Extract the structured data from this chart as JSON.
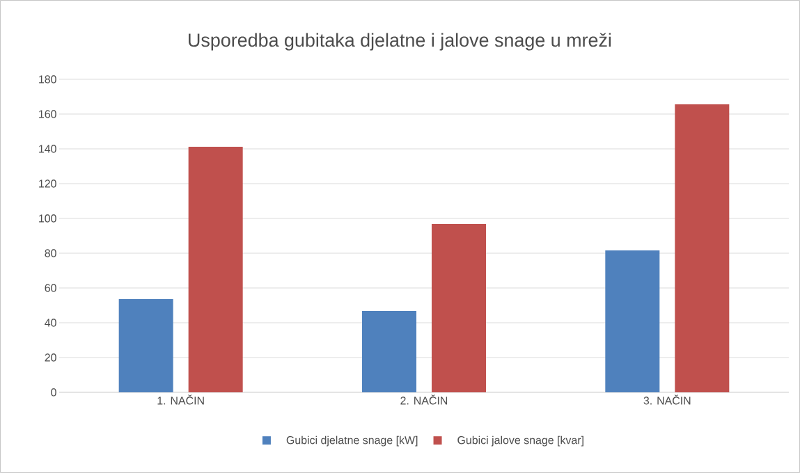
{
  "chart_data": {
    "type": "bar",
    "title": "Usporedba gubitaka djelatne i jalove snage u mreži",
    "categories": [
      "1. NAČIN",
      "2. NAČIN",
      "3. NAČIN"
    ],
    "series": [
      {
        "name": "Gubici djelatne snage [kW]",
        "color": "#4f81bd",
        "values": [
          53.6,
          46.8,
          81.6
        ]
      },
      {
        "name": "Gubici jalove snage [kvar]",
        "color": "#c0504d",
        "values": [
          141.2,
          96.8,
          165.6
        ]
      }
    ],
    "ylim": [
      0,
      180
    ],
    "yticks": [
      0,
      20,
      40,
      60,
      80,
      100,
      120,
      140,
      160,
      180
    ],
    "grid": "y",
    "legend": "bottom"
  }
}
